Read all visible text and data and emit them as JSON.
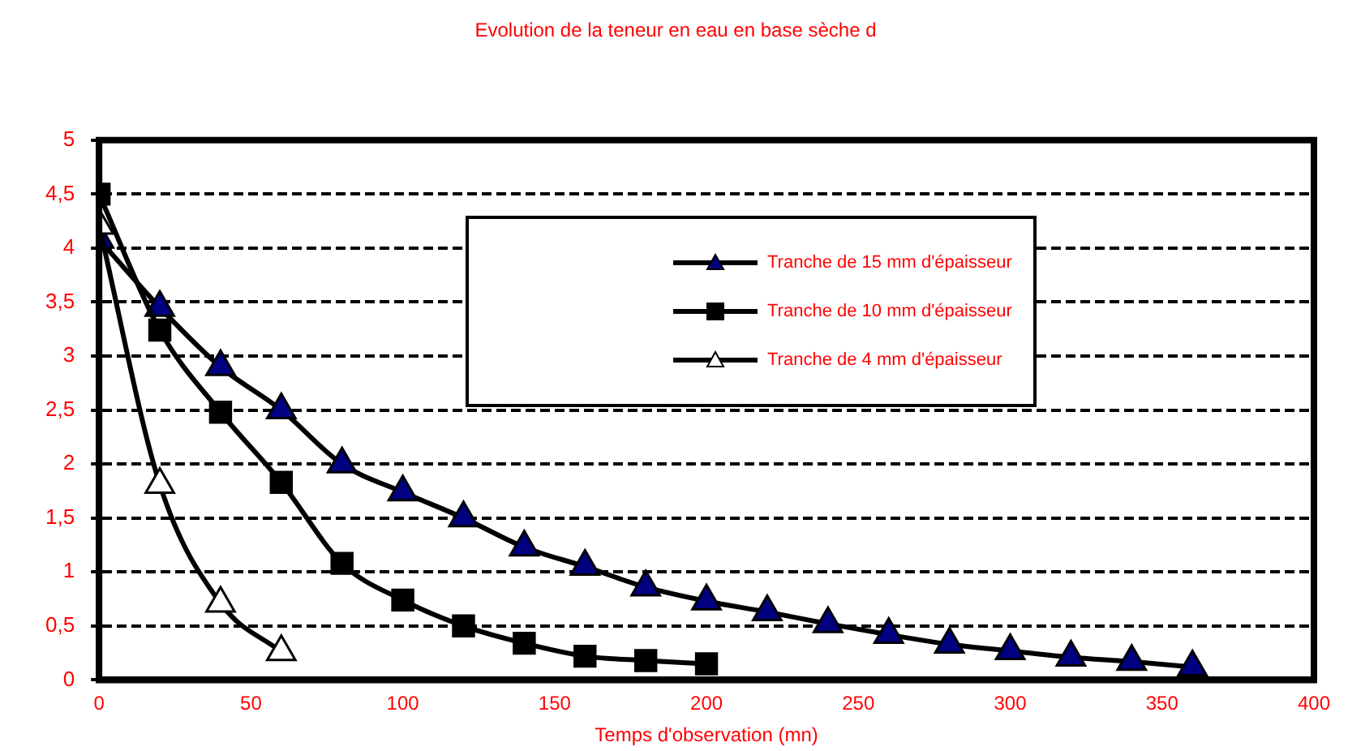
{
  "chart_data": {
    "type": "line",
    "title": "Evolution de la teneur en eau en base sèche d",
    "xlabel": "Temps d'observation (mn)",
    "series": [
      {
        "name": "Tranche de 15 mm d'épaisseur",
        "color": "#000080",
        "marker": "triangle",
        "x": [
          0,
          20,
          40,
          60,
          80,
          100,
          120,
          140,
          160,
          180,
          200,
          220,
          240,
          260,
          280,
          300,
          320,
          340,
          360
        ],
        "values": [
          4.08,
          3.45,
          2.9,
          2.5,
          2.0,
          1.74,
          1.5,
          1.23,
          1.05,
          0.86,
          0.73,
          0.63,
          0.52,
          0.42,
          0.33,
          0.27,
          0.21,
          0.17,
          0.12
        ]
      },
      {
        "name": "Tranche de 10 mm d'épaisseur",
        "color": "#000000",
        "marker": "square",
        "x": [
          0,
          20,
          40,
          60,
          80,
          100,
          120,
          140,
          160,
          180,
          200
        ],
        "values": [
          4.5,
          3.24,
          2.48,
          1.83,
          1.08,
          0.74,
          0.5,
          0.34,
          0.22,
          0.18,
          0.15
        ]
      },
      {
        "name": "Tranche de 4 mm d'épaisseur",
        "color": "#ffffff",
        "marker": "triangle",
        "x": [
          0,
          20,
          40,
          60
        ],
        "values": [
          4.21,
          1.81,
          0.71,
          0.26
        ]
      }
    ],
    "xlim": [
      0,
      400
    ],
    "xticks": [
      0,
      50,
      100,
      150,
      200,
      250,
      300,
      350,
      400
    ],
    "ylim": [
      0,
      5
    ],
    "yticks": [
      0,
      {
        "value": 0.5,
        "label": "0,5"
      },
      1,
      {
        "value": 1.5,
        "label": "1,5"
      },
      2,
      {
        "value": 2.5,
        "label": "2,5"
      },
      3,
      {
        "value": 3.5,
        "label": "3,5"
      },
      4,
      {
        "value": 4.5,
        "label": "4,5"
      },
      5
    ],
    "grid": "y",
    "legend": "top right",
    "line_style": "solid"
  }
}
